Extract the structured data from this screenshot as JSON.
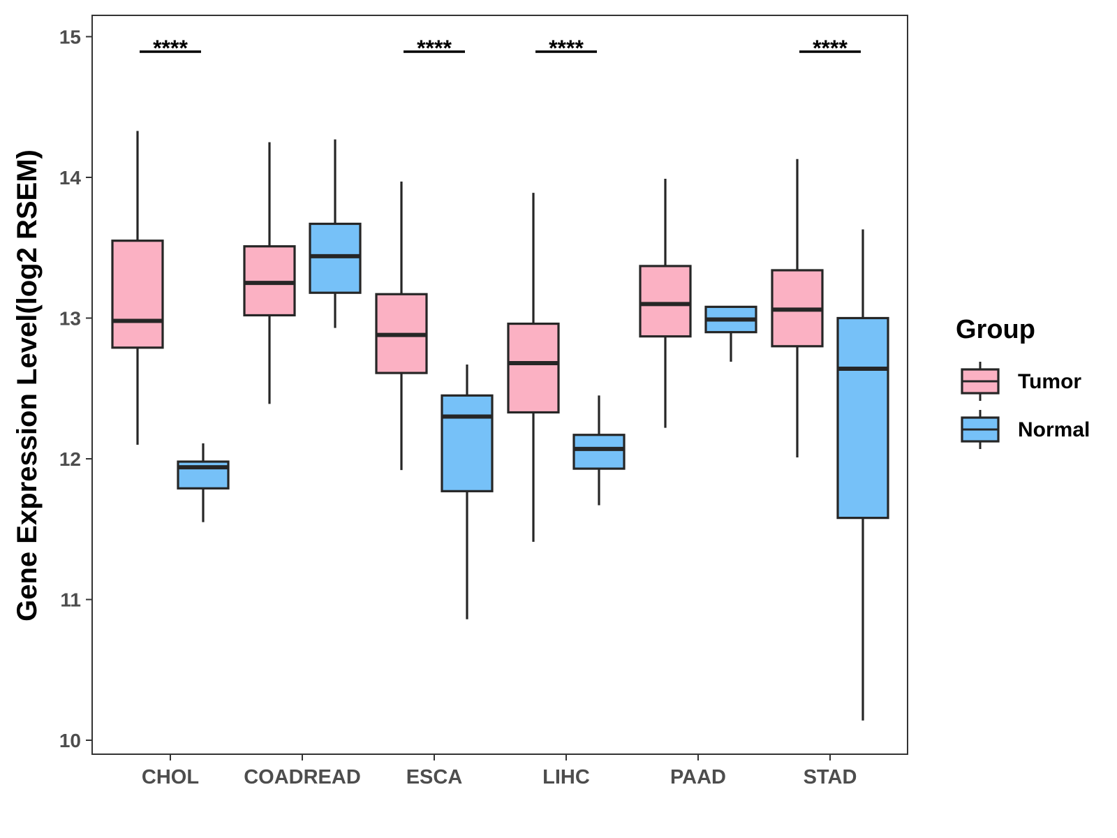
{
  "chart_data": {
    "type": "boxplot",
    "title": "",
    "xlabel": "",
    "ylabel": "Gene Expression Level(log2 RSEM)",
    "ylim": [
      9.9,
      15.15
    ],
    "yticks": [
      10,
      11,
      12,
      13,
      14,
      15
    ],
    "categories": [
      "CHOL",
      "COADREAD",
      "ESCA",
      "LIHC",
      "PAAD",
      "STAD"
    ],
    "legend": {
      "title": "Group",
      "position": "right",
      "entries": [
        "Tumor",
        "Normal"
      ]
    },
    "colors": {
      "Tumor": "#FBB1C3",
      "Normal": "#76C1F8",
      "stroke": "#262626"
    },
    "series": [
      {
        "name": "Tumor",
        "boxes": [
          {
            "category": "CHOL",
            "whisker_low": 12.1,
            "q1": 12.79,
            "median": 12.98,
            "q3": 13.55,
            "whisker_high": 14.33
          },
          {
            "category": "COADREAD",
            "whisker_low": 12.39,
            "q1": 13.02,
            "median": 13.25,
            "q3": 13.51,
            "whisker_high": 14.25
          },
          {
            "category": "ESCA",
            "whisker_low": 11.92,
            "q1": 12.61,
            "median": 12.88,
            "q3": 13.17,
            "whisker_high": 13.97
          },
          {
            "category": "LIHC",
            "whisker_low": 11.41,
            "q1": 12.33,
            "median": 12.68,
            "q3": 12.96,
            "whisker_high": 13.89
          },
          {
            "category": "PAAD",
            "whisker_low": 12.22,
            "q1": 12.87,
            "median": 13.1,
            "q3": 13.37,
            "whisker_high": 13.99
          },
          {
            "category": "STAD",
            "whisker_low": 12.01,
            "q1": 12.8,
            "median": 13.06,
            "q3": 13.34,
            "whisker_high": 14.13
          }
        ]
      },
      {
        "name": "Normal",
        "boxes": [
          {
            "category": "CHOL",
            "whisker_low": 11.55,
            "q1": 11.79,
            "median": 11.94,
            "q3": 11.98,
            "whisker_high": 12.11
          },
          {
            "category": "COADREAD",
            "whisker_low": 12.93,
            "q1": 13.18,
            "median": 13.44,
            "q3": 13.67,
            "whisker_high": 14.27
          },
          {
            "category": "ESCA",
            "whisker_low": 10.86,
            "q1": 11.77,
            "median": 12.3,
            "q3": 12.45,
            "whisker_high": 12.67
          },
          {
            "category": "LIHC",
            "whisker_low": 11.67,
            "q1": 11.93,
            "median": 12.07,
            "q3": 12.17,
            "whisker_high": 12.45
          },
          {
            "category": "PAAD",
            "whisker_low": 12.69,
            "q1": 12.9,
            "median": 12.99,
            "q3": 13.08,
            "whisker_high": 13.08
          },
          {
            "category": "STAD",
            "whisker_low": 10.14,
            "q1": 11.58,
            "median": 12.64,
            "q3": 13.0,
            "whisker_high": 13.63
          }
        ]
      }
    ],
    "significance": [
      {
        "category": "CHOL",
        "label": "****"
      },
      {
        "category": "ESCA",
        "label": "****"
      },
      {
        "category": "LIHC",
        "label": "****"
      },
      {
        "category": "STAD",
        "label": "****"
      }
    ]
  }
}
